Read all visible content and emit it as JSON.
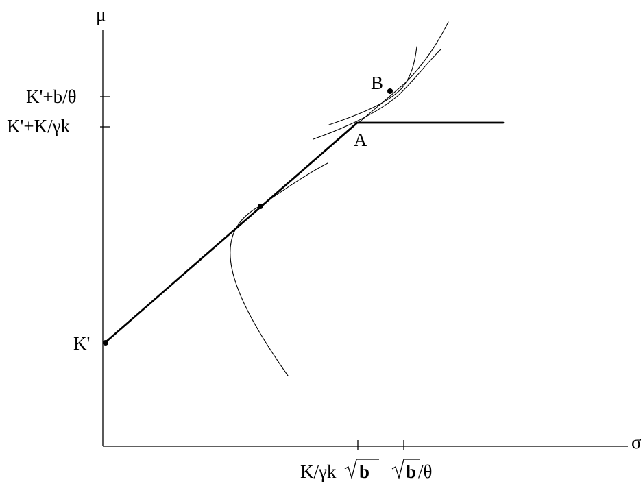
{
  "axes": {
    "y_symbol": "μ",
    "x_symbol": "σ"
  },
  "y_tick_labels": {
    "upper": "K'+b/θ",
    "lower": "K'+K/γk",
    "intercept": "K'"
  },
  "x_tick_labels": {
    "first_prefix": "K/γk",
    "first_radicand": "b",
    "second_radicand": "b",
    "second_suffix": "/θ"
  },
  "points": {
    "a": "A",
    "b": "B"
  }
}
